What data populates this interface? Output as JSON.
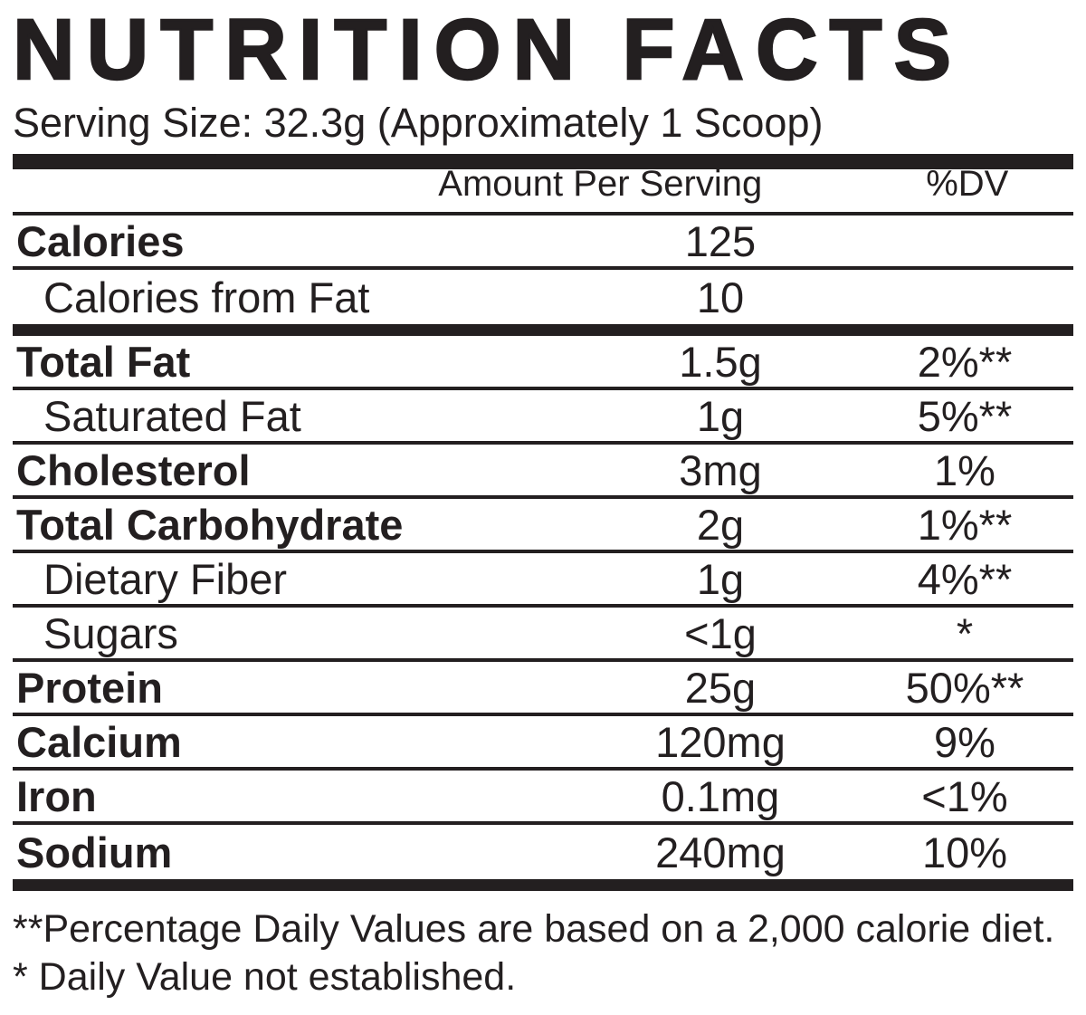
{
  "label": {
    "title": "NUTRITION FACTS",
    "serving_size": "Serving Size: 32.3g (Approximately 1 Scoop)",
    "columns": {
      "amount": "Amount Per Serving",
      "dv": "%DV"
    },
    "rows": [
      {
        "label": "Calories",
        "amount": "125",
        "dv": "",
        "bold": true,
        "indent": false,
        "bar_after": false
      },
      {
        "label": "Calories from Fat",
        "amount": "10",
        "dv": "",
        "bold": false,
        "indent": true,
        "bar_after": true
      },
      {
        "label": "Total Fat",
        "amount": "1.5g",
        "dv": "2%**",
        "bold": true,
        "indent": false,
        "bar_after": false
      },
      {
        "label": "Saturated Fat",
        "amount": "1g",
        "dv": "5%**",
        "bold": false,
        "indent": true,
        "bar_after": false
      },
      {
        "label": "Cholesterol",
        "amount": "3mg",
        "dv": "1%",
        "bold": true,
        "indent": false,
        "bar_after": false
      },
      {
        "label": "Total Carbohydrate",
        "amount": "2g",
        "dv": "1%**",
        "bold": true,
        "indent": false,
        "bar_after": false
      },
      {
        "label": "Dietary Fiber",
        "amount": "1g",
        "dv": "4%**",
        "bold": false,
        "indent": true,
        "bar_after": false
      },
      {
        "label": "Sugars",
        "amount": "<1g",
        "dv": "*",
        "bold": false,
        "indent": true,
        "bar_after": false
      },
      {
        "label": "Protein",
        "amount": "25g",
        "dv": "50%**",
        "bold": true,
        "indent": false,
        "bar_after": false
      },
      {
        "label": "Calcium",
        "amount": "120mg",
        "dv": "9%",
        "bold": true,
        "indent": false,
        "bar_after": false
      },
      {
        "label": "Iron",
        "amount": "0.1mg",
        "dv": "<1%",
        "bold": true,
        "indent": false,
        "bar_after": false
      },
      {
        "label": "Sodium",
        "amount": "240mg",
        "dv": "10%",
        "bold": true,
        "indent": false,
        "bar_after": true
      }
    ],
    "footnotes": [
      "**Percentage Daily Values are based on a 2,000 calorie diet.",
      "* Daily Value not established."
    ],
    "colors": {
      "ink": "#231f20",
      "background": "#ffffff"
    }
  }
}
